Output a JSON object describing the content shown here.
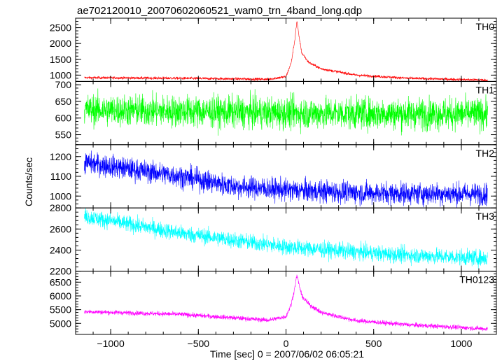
{
  "title": "ae702120010_20070602060521_wam0_trn_4band_long.qdp",
  "chart_data": {
    "type": "line",
    "title": "ae702120010_20070602060521_wam0_trn_4band_long.qdp",
    "xlabel": "Time [sec] 0 = 2007/06/02 06:05:21",
    "ylabel": "Counts/sec",
    "xlim": [
      -1200,
      1200
    ],
    "xticks": [
      -1000,
      -500,
      0,
      500,
      1000
    ],
    "xtick_labels": [
      "−1000",
      "−500",
      "0",
      "500",
      "1000"
    ],
    "data_range": [
      -1150,
      1150
    ],
    "sample_step": 1,
    "grid": false,
    "series": [
      {
        "name": "TH0",
        "color": "#ff0000",
        "ylim": [
          800,
          2800
        ],
        "yticks": [
          1000,
          1500,
          2000,
          2500
        ],
        "ytick_labels": [
          "1000",
          "1500",
          "2000",
          "2500"
        ],
        "noise": 30,
        "profile": [
          [
            -1150,
            920
          ],
          [
            -600,
            900
          ],
          [
            -100,
            870
          ],
          [
            0,
            950
          ],
          [
            30,
            1400
          ],
          [
            50,
            2100
          ],
          [
            62,
            2700
          ],
          [
            75,
            2200
          ],
          [
            90,
            1700
          ],
          [
            130,
            1400
          ],
          [
            200,
            1200
          ],
          [
            400,
            1000
          ],
          [
            700,
            900
          ],
          [
            1150,
            840
          ]
        ]
      },
      {
        "name": "TH1",
        "color": "#00ff00",
        "ylim": [
          520,
          710
        ],
        "yticks": [
          550,
          600,
          650,
          700
        ],
        "ytick_labels": [
          "550",
          "600",
          "650",
          "700"
        ],
        "noise": 34,
        "profile": [
          [
            -1150,
            625
          ],
          [
            0,
            615
          ],
          [
            1150,
            612
          ]
        ]
      },
      {
        "name": "TH2",
        "color": "#0000ff",
        "ylim": [
          940,
          1260
        ],
        "yticks": [
          1000,
          1100,
          1200
        ],
        "ytick_labels": [
          "1000",
          "1100",
          "1200"
        ],
        "noise": 40,
        "profile": [
          [
            -1150,
            1170
          ],
          [
            -600,
            1100
          ],
          [
            -300,
            1050
          ],
          [
            0,
            1030
          ],
          [
            500,
            1015
          ],
          [
            1150,
            1010
          ]
        ]
      },
      {
        "name": "TH3",
        "color": "#00ffff",
        "ylim": [
          2200,
          2800
        ],
        "yticks": [
          2200,
          2400,
          2600,
          2800
        ],
        "ytick_labels": [
          "2200",
          "2400",
          "2600",
          "2800"
        ],
        "noise": 55,
        "profile": [
          [
            -1150,
            2720
          ],
          [
            -600,
            2560
          ],
          [
            0,
            2430
          ],
          [
            600,
            2360
          ],
          [
            1150,
            2320
          ]
        ]
      },
      {
        "name": "TH0123",
        "color": "#ff00ff",
        "ylim": [
          4600,
          6900
        ],
        "yticks": [
          5000,
          5500,
          6000,
          6500
        ],
        "ytick_labels": [
          "5000",
          "5500",
          "6000",
          "6500"
        ],
        "noise": 60,
        "profile": [
          [
            -1150,
            5430
          ],
          [
            -600,
            5330
          ],
          [
            -100,
            5120
          ],
          [
            0,
            5250
          ],
          [
            30,
            5700
          ],
          [
            50,
            6300
          ],
          [
            62,
            6750
          ],
          [
            75,
            6400
          ],
          [
            90,
            6000
          ],
          [
            130,
            5700
          ],
          [
            200,
            5400
          ],
          [
            400,
            5100
          ],
          [
            700,
            4950
          ],
          [
            1150,
            4800
          ]
        ]
      }
    ]
  }
}
